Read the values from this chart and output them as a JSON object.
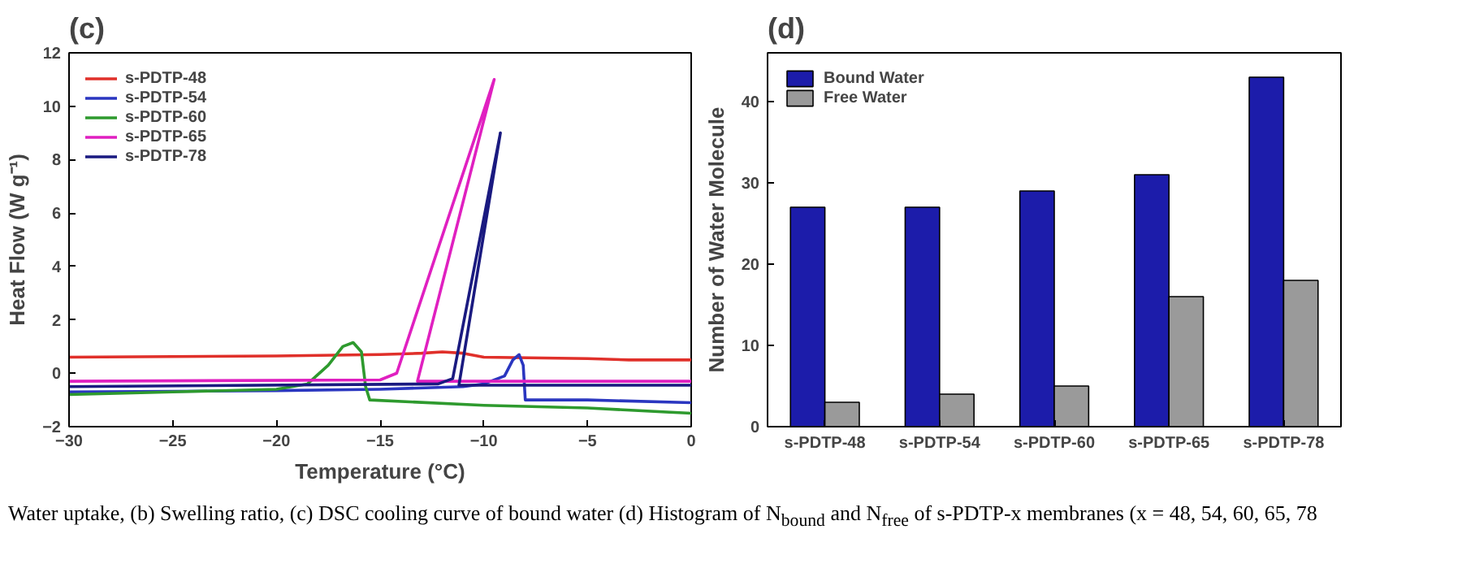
{
  "chart_data": [
    {
      "type": "line",
      "title": "(c)",
      "xlabel": "Temperature (°C)",
      "ylabel": "Heat Flow (W g⁻¹)",
      "xlim": [
        -30,
        0
      ],
      "ylim": [
        -2,
        12
      ],
      "xticks": [
        -30,
        -25,
        -20,
        -15,
        -10,
        -5,
        0
      ],
      "yticks": [
        -2,
        0,
        2,
        4,
        6,
        8,
        10,
        12
      ],
      "grid": false,
      "legend": "top left",
      "line_style": "solid",
      "series": [
        {
          "name": "s-PDTP-48",
          "color": "#e0302a",
          "x": [
            -30,
            -20,
            -15,
            -13,
            -12,
            -11,
            -10,
            -5,
            -3,
            0
          ],
          "values": [
            0.6,
            0.65,
            0.7,
            0.75,
            0.8,
            0.75,
            0.6,
            0.55,
            0.5,
            0.5
          ]
        },
        {
          "name": "s-PDTP-54",
          "color": "#2a36c0",
          "x": [
            -30,
            -20,
            -15,
            -11,
            -10,
            -9,
            -8.6,
            -8.3,
            -8.1,
            -8,
            -5,
            0
          ],
          "values": [
            -0.7,
            -0.65,
            -0.6,
            -0.5,
            -0.4,
            -0.1,
            0.5,
            0.7,
            0.3,
            -1.0,
            -1.0,
            -1.1
          ]
        },
        {
          "name": "s-PDTP-60",
          "color": "#2e9a2e",
          "x": [
            -30,
            -25,
            -20,
            -18.5,
            -17.5,
            -16.8,
            -16.3,
            -15.9,
            -15.7,
            -15.5,
            -10,
            -5,
            0
          ],
          "values": [
            -0.8,
            -0.7,
            -0.6,
            -0.4,
            0.3,
            1.0,
            1.15,
            0.8,
            -0.5,
            -1.0,
            -1.2,
            -1.3,
            -1.5
          ]
        },
        {
          "name": "s-PDTP-65",
          "color": "#e020c0",
          "x": [
            0,
            -13.2,
            -9.5,
            -14.2,
            -15,
            -30
          ],
          "values": [
            -0.3,
            -0.3,
            11,
            0,
            -0.25,
            -0.3
          ]
        },
        {
          "name": "s-PDTP-78",
          "color": "#1a1a80",
          "x": [
            0,
            -11.2,
            -9.2,
            -11.5,
            -12.2,
            -30
          ],
          "values": [
            -0.45,
            -0.45,
            9,
            -0.2,
            -0.4,
            -0.5
          ]
        }
      ]
    },
    {
      "type": "bar",
      "title": "(d)",
      "ylabel": "Number of Water Molecule",
      "categories": [
        "s-PDTP-48",
        "s-PDTP-54",
        "s-PDTP-60",
        "s-PDTP-65",
        "s-PDTP-78"
      ],
      "ylim": [
        0,
        46
      ],
      "yticks": [
        0,
        10,
        20,
        30,
        40
      ],
      "grid": false,
      "legend": "top left",
      "series": [
        {
          "name": "Bound Water",
          "color": "#1c1caa",
          "values": [
            27,
            27,
            29,
            31,
            43
          ]
        },
        {
          "name": "Free Water",
          "color": "#9a9a9a",
          "values": [
            3,
            4,
            5,
            16,
            18
          ]
        }
      ],
      "annotations": [
        "Water uptake, (b) Swelling ratio, (c) DSC cooling curve of bound water (d) Histogram of N$_{bound}$ and N$_{free}$ of s-PDTP-x membranes (x = 48, 54, 60, 65, 78"
      ]
    }
  ]
}
